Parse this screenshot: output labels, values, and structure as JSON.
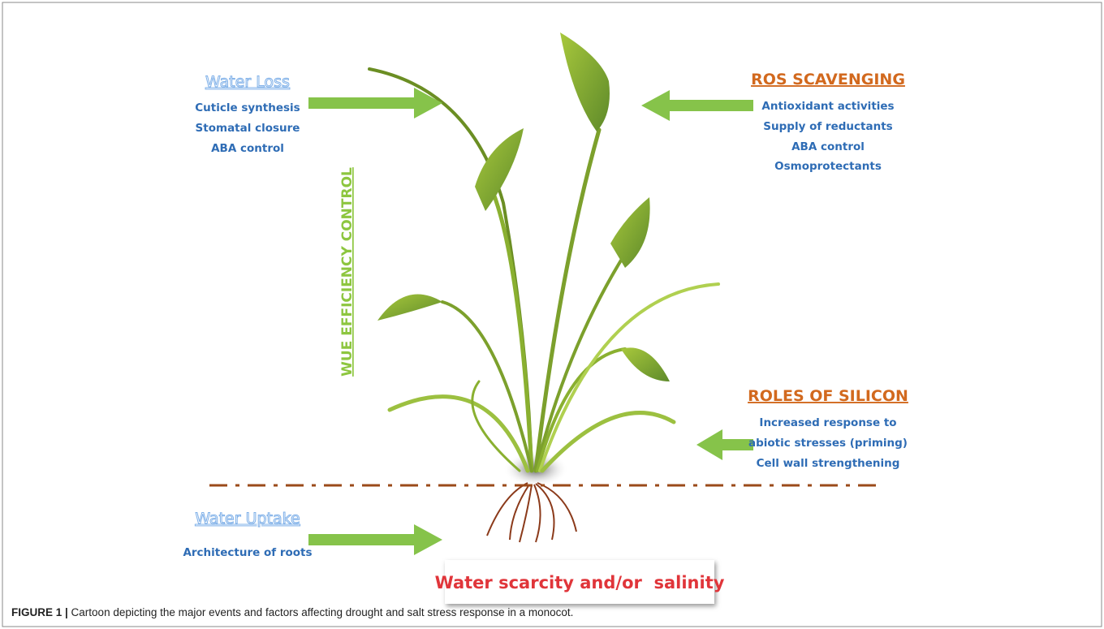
{
  "blocks": [
    {
      "title": "Water Loss",
      "items": [
        "Cuticle synthesis",
        "Stomatal closure",
        "ABA control"
      ]
    },
    {
      "title": "ROS SCAVENGING",
      "items": [
        "Antioxidant activities",
        "Supply of reductants",
        "ABA control",
        "Osmoprotectants"
      ]
    },
    {
      "title": "ROLES OF SILICON",
      "items": [
        "Increased response to",
        "abiotic stresses (priming)",
        "Cell wall strengthening"
      ]
    },
    {
      "title": "Water Uptake",
      "items": [
        "Architecture of roots"
      ]
    }
  ],
  "vertical_label": "WUE EFFICIENCY CONTROL",
  "bottom_label": "Water scarcity and/or  salinity",
  "caption": {
    "label": "FIGURE 1 |",
    "text": " Cartoon depicting the major events and factors affecting drought and salt stress response in a monocot."
  }
}
